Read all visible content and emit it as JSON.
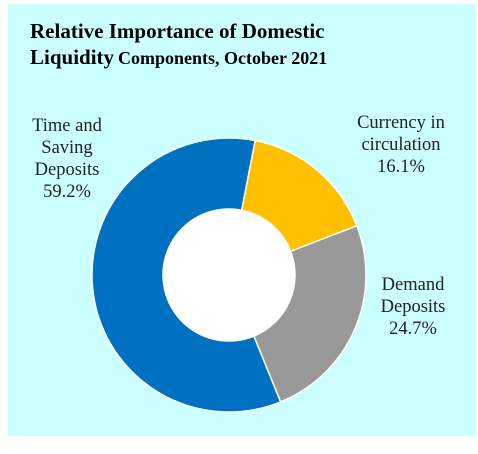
{
  "title": {
    "line1": "Relative Importance of Domestic",
    "line2_part1": "Liquidity",
    "line2_part2": "Components, October 2021"
  },
  "chart_data": {
    "type": "pie",
    "donut": true,
    "title": "Relative Importance of Domestic Liquidity Components, October 2021",
    "slices": [
      {
        "label": "Currency in circulation",
        "value": 16.1,
        "value_label": "16.1%",
        "color": "#ffc000",
        "label_lines": [
          "Currency in",
          "circulation",
          "16.1%"
        ]
      },
      {
        "label": "Demand Deposits",
        "value": 24.7,
        "value_label": "24.7%",
        "color": "#999999",
        "label_lines": [
          "Demand",
          "Deposits",
          "24.7%"
        ]
      },
      {
        "label": "Time and Saving Deposits",
        "value": 59.2,
        "value_label": "59.2%",
        "color": "#0070c0",
        "label_lines": [
          "Time and",
          "Saving",
          "Deposits",
          "59.2%"
        ]
      }
    ],
    "background": "#ccffff",
    "legend": "none"
  }
}
